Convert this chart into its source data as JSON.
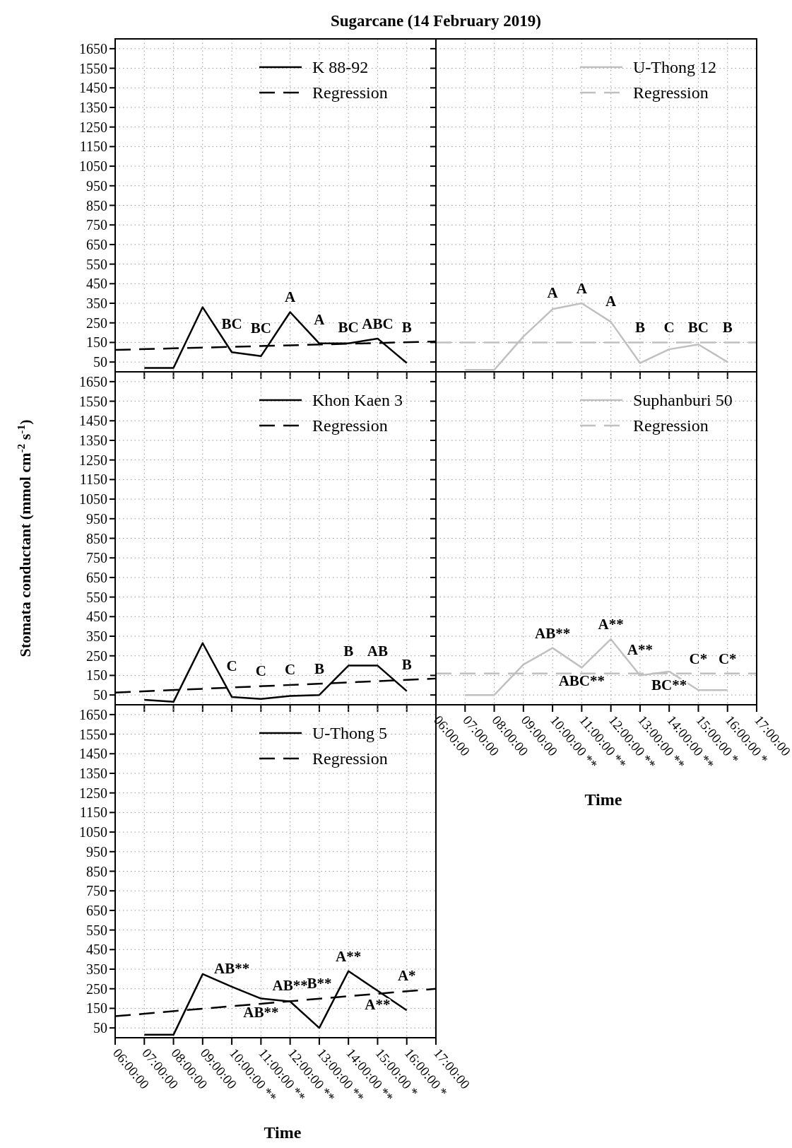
{
  "chart_data": [
    {
      "type": "line",
      "title": "Sugarcane (14 February 2019)",
      "xlim": [
        6,
        17
      ],
      "ylim": [
        0,
        1700
      ],
      "xticks": [
        {
          "value": 6,
          "label": null
        },
        {
          "value": 7,
          "label": null
        },
        {
          "value": 8,
          "label": null
        },
        {
          "value": 9,
          "label": null
        },
        {
          "value": 10,
          "label": null
        },
        {
          "value": 11,
          "label": null
        },
        {
          "value": 12,
          "label": null
        },
        {
          "value": 13,
          "label": null
        },
        {
          "value": 14,
          "label": null
        },
        {
          "value": 15,
          "label": null
        },
        {
          "value": 16,
          "label": null
        },
        {
          "value": 17,
          "label": null
        }
      ],
      "yticks": [
        50,
        150,
        250,
        350,
        450,
        550,
        650,
        750,
        850,
        950,
        1050,
        1150,
        1250,
        1350,
        1450,
        1550,
        1650
      ],
      "grid": true,
      "legend": "top right",
      "tick_labels": "y",
      "series": [
        {
          "name": "K 88-92",
          "color": "#000000",
          "line_style": "solid",
          "x": [
            7,
            8,
            9,
            10,
            11,
            12,
            13,
            14,
            15,
            16
          ],
          "values": [
            20,
            20,
            330,
            100,
            80,
            305,
            145,
            145,
            170,
            45
          ]
        },
        {
          "name": "Regression",
          "color": "#000000",
          "line_style": "dashed",
          "x": [
            6,
            17
          ],
          "values": [
            112,
            155
          ]
        }
      ],
      "annotations": [
        {
          "text": "BC",
          "x": 10,
          "y": 100
        },
        {
          "text": "BC",
          "x": 11,
          "y": 80
        },
        {
          "text": "A",
          "x": 12,
          "y": 305
        },
        {
          "text": "A",
          "x": 13,
          "y": 145
        },
        {
          "text": "BC",
          "x": 14,
          "y": 145
        },
        {
          "text": "ABC",
          "x": 15,
          "y": 170
        },
        {
          "text": "B",
          "x": 16,
          "y": 45
        }
      ]
    },
    {
      "type": "line",
      "xlim": [
        6,
        17
      ],
      "ylim": [
        0,
        1700
      ],
      "xticks": [
        {
          "value": 6,
          "label": null
        },
        {
          "value": 7,
          "label": null
        },
        {
          "value": 8,
          "label": null
        },
        {
          "value": 9,
          "label": null
        },
        {
          "value": 10,
          "label": null
        },
        {
          "value": 11,
          "label": null
        },
        {
          "value": 12,
          "label": null
        },
        {
          "value": 13,
          "label": null
        },
        {
          "value": 14,
          "label": null
        },
        {
          "value": 15,
          "label": null
        },
        {
          "value": 16,
          "label": null
        },
        {
          "value": 17,
          "label": null
        }
      ],
      "yticks": [
        50,
        150,
        250,
        350,
        450,
        550,
        650,
        750,
        850,
        950,
        1050,
        1150,
        1250,
        1350,
        1450,
        1550,
        1650
      ],
      "grid": true,
      "legend": "top right",
      "tick_labels": false,
      "series": [
        {
          "name": "U-Thong 12",
          "color": "#c0c0c0",
          "line_style": "solid",
          "x": [
            7,
            8,
            9,
            10,
            11,
            12,
            13,
            14,
            15,
            16
          ],
          "values": [
            10,
            10,
            180,
            320,
            350,
            255,
            45,
            115,
            140,
            50
          ]
        },
        {
          "name": "Regression",
          "color": "#c0c0c0",
          "line_style": "dashed",
          "x": [
            6,
            17
          ],
          "values": [
            150,
            150
          ]
        }
      ],
      "annotations": [
        {
          "text": "A",
          "x": 10,
          "y": 320
        },
        {
          "text": "A",
          "x": 11,
          "y": 350
        },
        {
          "text": "A",
          "x": 12,
          "y": 255
        },
        {
          "text": "B",
          "x": 13,
          "y": 45
        },
        {
          "text": "C",
          "x": 14,
          "y": 115
        },
        {
          "text": "BC",
          "x": 15,
          "y": 140
        },
        {
          "text": "B",
          "x": 16,
          "y": 50
        }
      ]
    },
    {
      "type": "line",
      "ylabel": "Stomata conductant (mmol cm$^{-2}$ s$^{-1}$)",
      "xlim": [
        6,
        17
      ],
      "ylim": [
        0,
        1700
      ],
      "xticks": [
        {
          "value": 6,
          "label": null
        },
        {
          "value": 7,
          "label": null
        },
        {
          "value": 8,
          "label": null
        },
        {
          "value": 9,
          "label": null
        },
        {
          "value": 10,
          "label": null
        },
        {
          "value": 11,
          "label": null
        },
        {
          "value": 12,
          "label": null
        },
        {
          "value": 13,
          "label": null
        },
        {
          "value": 14,
          "label": null
        },
        {
          "value": 15,
          "label": null
        },
        {
          "value": 16,
          "label": null
        },
        {
          "value": 17,
          "label": null
        }
      ],
      "yticks": [
        50,
        150,
        250,
        350,
        450,
        550,
        650,
        750,
        850,
        950,
        1050,
        1150,
        1250,
        1350,
        1450,
        1550,
        1650
      ],
      "grid": true,
      "legend": "top right",
      "tick_labels": "y",
      "series": [
        {
          "name": "Khon Kaen 3",
          "color": "#000000",
          "line_style": "solid",
          "x": [
            7,
            8,
            9,
            10,
            11,
            12,
            13,
            14,
            15,
            16
          ],
          "values": [
            25,
            15,
            315,
            40,
            30,
            45,
            50,
            200,
            200,
            70
          ]
        },
        {
          "name": "Regression",
          "color": "#000000",
          "line_style": "dashed",
          "x": [
            6,
            17
          ],
          "values": [
            62,
            134
          ]
        }
      ],
      "annotations": [
        {
          "text": "C",
          "x": 10,
          "y": 40
        },
        {
          "text": "C",
          "x": 11,
          "y": 30
        },
        {
          "text": "C",
          "x": 12,
          "y": 45
        },
        {
          "text": "B",
          "x": 13,
          "y": 50
        },
        {
          "text": "B",
          "x": 14,
          "y": 200
        },
        {
          "text": "AB",
          "x": 15,
          "y": 200
        },
        {
          "text": "B",
          "x": 16,
          "y": 70
        }
      ]
    },
    {
      "type": "line",
      "xlabel": "Time",
      "xlim": [
        6,
        17
      ],
      "ylim": [
        0,
        1700
      ],
      "xticks": [
        {
          "value": 6,
          "label": "06:00:00"
        },
        {
          "value": 7,
          "label": "07:00:00"
        },
        {
          "value": 8,
          "label": "08:00:00"
        },
        {
          "value": 9,
          "label": "09:00:00"
        },
        {
          "value": 10,
          "label": "10:00:00 **"
        },
        {
          "value": 11,
          "label": "11:00:00 **"
        },
        {
          "value": 12,
          "label": "12:00:00 **"
        },
        {
          "value": 13,
          "label": "13:00:00 **"
        },
        {
          "value": 14,
          "label": "14:00:00 **"
        },
        {
          "value": 15,
          "label": "15:00:00 *"
        },
        {
          "value": 16,
          "label": "16:00:00 *"
        },
        {
          "value": 17,
          "label": "17:00:00"
        }
      ],
      "yticks": [
        50,
        150,
        250,
        350,
        450,
        550,
        650,
        750,
        850,
        950,
        1050,
        1150,
        1250,
        1350,
        1450,
        1550,
        1650
      ],
      "grid": true,
      "legend": "top right",
      "tick_labels": "x",
      "series": [
        {
          "name": "Suphanburi 50",
          "color": "#c0c0c0",
          "line_style": "solid",
          "x": [
            7,
            8,
            9,
            10,
            11,
            12,
            13,
            14,
            15,
            16
          ],
          "values": [
            50,
            50,
            205,
            290,
            190,
            335,
            150,
            170,
            75,
            75
          ]
        },
        {
          "name": "Regression",
          "color": "#c0c0c0",
          "line_style": "dashed",
          "x": [
            6,
            17
          ],
          "values": [
            160,
            160
          ]
        }
      ],
      "annotations": [
        {
          "text": "AB**",
          "x": 10,
          "y": 290
        },
        {
          "text": "ABC**",
          "x": 11,
          "y": 190
        },
        {
          "text": "A**",
          "x": 12,
          "y": 335
        },
        {
          "text": "A**",
          "x": 13,
          "y": 150
        },
        {
          "text": "BC**",
          "x": 14,
          "y": 170
        },
        {
          "text": "C*",
          "x": 15,
          "y": 75
        },
        {
          "text": "C*",
          "x": 16,
          "y": 75
        }
      ]
    },
    {
      "type": "line",
      "xlabel": "Time",
      "xlim": [
        6,
        17
      ],
      "ylim": [
        0,
        1700
      ],
      "xticks": [
        {
          "value": 6,
          "label": "06:00:00"
        },
        {
          "value": 7,
          "label": "07:00:00"
        },
        {
          "value": 8,
          "label": "08:00:00"
        },
        {
          "value": 9,
          "label": "09:00:00"
        },
        {
          "value": 10,
          "label": "10:00:00 **"
        },
        {
          "value": 11,
          "label": "11:00:00 **"
        },
        {
          "value": 12,
          "label": "12:00:00 **"
        },
        {
          "value": 13,
          "label": "13:00:00 **"
        },
        {
          "value": 14,
          "label": "14:00:00 **"
        },
        {
          "value": 15,
          "label": "15:00:00 *"
        },
        {
          "value": 16,
          "label": "16:00:00 *"
        },
        {
          "value": 17,
          "label": "17:00:00"
        }
      ],
      "yticks": [
        50,
        150,
        250,
        350,
        450,
        550,
        650,
        750,
        850,
        950,
        1050,
        1150,
        1250,
        1350,
        1450,
        1550,
        1650
      ],
      "grid": true,
      "legend": "top right",
      "series": [
        {
          "name": "U-Thong 5",
          "color": "#000000",
          "line_style": "solid",
          "x": [
            7,
            8,
            9,
            10,
            11,
            12,
            13,
            14,
            15,
            16
          ],
          "values": [
            15,
            15,
            325,
            260,
            200,
            185,
            50,
            340,
            240,
            140
          ]
        },
        {
          "name": "Regression",
          "color": "#000000",
          "line_style": "dashed",
          "x": [
            6,
            17
          ],
          "values": [
            110,
            250
          ]
        }
      ],
      "annotations": [
        {
          "text": "AB**",
          "x": 10,
          "y": 260
        },
        {
          "text": "AB**",
          "x": 11,
          "y": 200
        },
        {
          "text": "AB**",
          "x": 12,
          "y": 185
        },
        {
          "text": "B**",
          "x": 13,
          "y": 50
        },
        {
          "text": "A**",
          "x": 14,
          "y": 340
        },
        {
          "text": "A**",
          "x": 15,
          "y": 240
        },
        {
          "text": "A*",
          "x": 16,
          "y": 140
        }
      ]
    }
  ]
}
